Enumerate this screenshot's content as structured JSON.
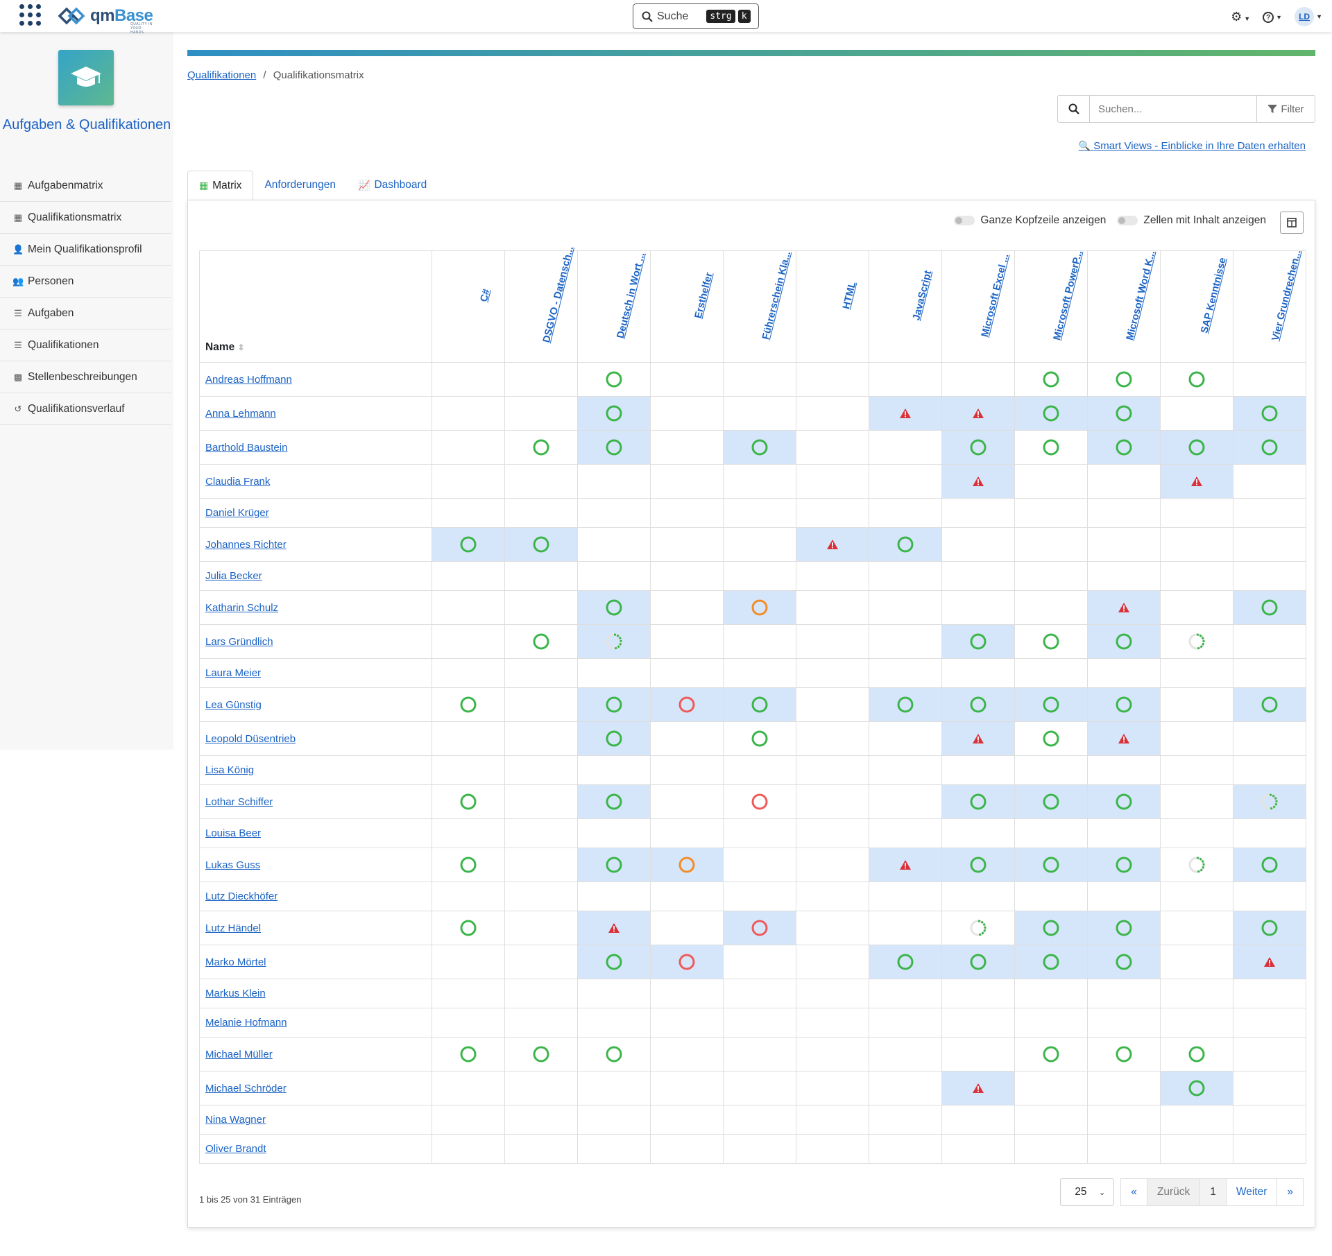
{
  "app": {
    "brand_prefix": "qm",
    "brand_suffix": "Base",
    "tagline": "QUALITY IN YOUR HANDS"
  },
  "topbar": {
    "search_label": "Suche",
    "kbd_1": "strg",
    "kbd_2": "k",
    "user_initials": "LD"
  },
  "sidebar": {
    "module_title": "Aufgaben & Qualifikationen",
    "items": [
      {
        "label": "Aufgabenmatrix",
        "icon": "matrix-icon"
      },
      {
        "label": "Qualifikationsmatrix",
        "icon": "matrix-icon"
      },
      {
        "label": "Mein Qualifikationsprofil",
        "icon": "user-icon"
      },
      {
        "label": "Personen",
        "icon": "users-icon"
      },
      {
        "label": "Aufgaben",
        "icon": "list-icon"
      },
      {
        "label": "Qualifikationen",
        "icon": "list-icon"
      },
      {
        "label": "Stellenbeschreibungen",
        "icon": "grid-icon"
      },
      {
        "label": "Qualifikationsverlauf",
        "icon": "history-icon"
      }
    ]
  },
  "breadcrumb": {
    "parent": "Qualifikationen",
    "current": "Qualifikationsmatrix"
  },
  "search": {
    "placeholder": "Suchen...",
    "filter_label": "Filter"
  },
  "smart_views_link": "Smart Views - Einblicke in Ihre Daten erhalten",
  "tabs": [
    {
      "label": "Matrix",
      "active": true
    },
    {
      "label": "Anforderungen",
      "active": false
    },
    {
      "label": "Dashboard",
      "active": false
    }
  ],
  "toggles": {
    "full_header": "Ganze Kopfzeile anzeigen",
    "cells_with_content": "Zellen mit Inhalt anzeigen"
  },
  "matrix": {
    "name_header": "Name",
    "columns": [
      "C#",
      "DSGVO - Datensch...",
      "Deutsch in Wort ...",
      "Ersthelfer",
      "Führerschein Kla...",
      "HTML",
      "JavaScript",
      "Microsoft Excel ...",
      "Microsoft PowerP...",
      "Microsoft Word K...",
      "SAP Kenntnisse",
      "Vier Grundrechen..."
    ],
    "legend": {
      "g": "fulfilled",
      "o": "partially-fulfilled",
      "r": "not-fulfilled",
      "w": "warning",
      "p": "in-progress"
    },
    "colors": {
      "green": "#3bb54a",
      "orange": "#f28c28",
      "red": "#ee5a5a",
      "warning": "#d9313a",
      "highlight": "#d6e6fa"
    },
    "rows": [
      {
        "name": "Andreas Hoffmann",
        "cells": [
          "",
          "",
          "g",
          "",
          "",
          "",
          "",
          "",
          "g",
          "g",
          "g",
          ""
        ],
        "hl": []
      },
      {
        "name": "Anna Lehmann",
        "cells": [
          "",
          "",
          "g",
          "",
          "",
          "",
          "w",
          "w",
          "g",
          "g",
          "",
          "g"
        ],
        "hl": [
          2,
          6,
          7,
          8,
          9,
          11
        ]
      },
      {
        "name": "Barthold Baustein",
        "cells": [
          "",
          "g",
          "g",
          "",
          "g",
          "",
          "",
          "g",
          "g",
          "g",
          "g",
          "g"
        ],
        "hl": [
          2,
          4,
          7,
          9,
          10,
          11
        ]
      },
      {
        "name": "Claudia Frank",
        "cells": [
          "",
          "",
          "",
          "",
          "",
          "",
          "",
          "w",
          "",
          "",
          "w",
          ""
        ],
        "hl": [
          7,
          10
        ]
      },
      {
        "name": "Daniel Krüger",
        "cells": [
          "",
          "",
          "",
          "",
          "",
          "",
          "",
          "",
          "",
          "",
          "",
          ""
        ],
        "hl": []
      },
      {
        "name": "Johannes Richter",
        "cells": [
          "g",
          "g",
          "",
          "",
          "",
          "w",
          "g",
          "",
          "",
          "",
          "",
          ""
        ],
        "hl": [
          0,
          1,
          5,
          6
        ]
      },
      {
        "name": "Julia Becker",
        "cells": [
          "",
          "",
          "",
          "",
          "",
          "",
          "",
          "",
          "",
          "",
          "",
          ""
        ],
        "hl": []
      },
      {
        "name": "Katharin Schulz",
        "cells": [
          "",
          "",
          "g",
          "",
          "o",
          "",
          "",
          "",
          "",
          "w",
          "",
          "g"
        ],
        "hl": [
          2,
          4,
          9,
          11
        ]
      },
      {
        "name": "Lars Gründlich",
        "cells": [
          "",
          "g",
          "p",
          "",
          "",
          "",
          "",
          "g",
          "g",
          "g",
          "p",
          ""
        ],
        "hl": [
          2,
          7,
          9
        ]
      },
      {
        "name": "Laura Meier",
        "cells": [
          "",
          "",
          "",
          "",
          "",
          "",
          "",
          "",
          "",
          "",
          "",
          ""
        ],
        "hl": []
      },
      {
        "name": "Lea Günstig",
        "cells": [
          "g",
          "",
          "g",
          "r",
          "g",
          "",
          "g",
          "g",
          "g",
          "g",
          "",
          "g"
        ],
        "hl": [
          2,
          3,
          4,
          6,
          7,
          8,
          9,
          11
        ]
      },
      {
        "name": "Leopold Düsentrieb",
        "cells": [
          "",
          "",
          "g",
          "",
          "g",
          "",
          "",
          "w",
          "g",
          "w",
          "",
          ""
        ],
        "hl": [
          2,
          7,
          9
        ]
      },
      {
        "name": "Lisa König",
        "cells": [
          "",
          "",
          "",
          "",
          "",
          "",
          "",
          "",
          "",
          "",
          "",
          ""
        ],
        "hl": []
      },
      {
        "name": "Lothar Schiffer",
        "cells": [
          "g",
          "",
          "g",
          "",
          "r",
          "",
          "",
          "g",
          "g",
          "g",
          "",
          "p"
        ],
        "hl": [
          2,
          7,
          8,
          9,
          11
        ]
      },
      {
        "name": "Louisa Beer",
        "cells": [
          "",
          "",
          "",
          "",
          "",
          "",
          "",
          "",
          "",
          "",
          "",
          ""
        ],
        "hl": []
      },
      {
        "name": "Lukas Guss",
        "cells": [
          "g",
          "",
          "g",
          "o",
          "",
          "",
          "w",
          "g",
          "g",
          "g",
          "p",
          "g"
        ],
        "hl": [
          2,
          3,
          6,
          7,
          8,
          9,
          11
        ]
      },
      {
        "name": "Lutz Dieckhöfer",
        "cells": [
          "",
          "",
          "",
          "",
          "",
          "",
          "",
          "",
          "",
          "",
          "",
          ""
        ],
        "hl": []
      },
      {
        "name": "Lutz Händel",
        "cells": [
          "g",
          "",
          "w",
          "",
          "r",
          "",
          "",
          "p",
          "g",
          "g",
          "",
          "g"
        ],
        "hl": [
          2,
          4,
          8,
          9,
          11
        ]
      },
      {
        "name": "Marko Mörtel",
        "cells": [
          "",
          "",
          "g",
          "r",
          "",
          "",
          "g",
          "g",
          "g",
          "g",
          "",
          "w"
        ],
        "hl": [
          2,
          3,
          6,
          7,
          8,
          9,
          11
        ]
      },
      {
        "name": "Markus Klein",
        "cells": [
          "",
          "",
          "",
          "",
          "",
          "",
          "",
          "",
          "",
          "",
          "",
          ""
        ],
        "hl": []
      },
      {
        "name": "Melanie Hofmann",
        "cells": [
          "",
          "",
          "",
          "",
          "",
          "",
          "",
          "",
          "",
          "",
          "",
          ""
        ],
        "hl": []
      },
      {
        "name": "Michael Müller",
        "cells": [
          "g",
          "g",
          "g",
          "",
          "",
          "",
          "",
          "",
          "g",
          "g",
          "g",
          ""
        ],
        "hl": []
      },
      {
        "name": "Michael Schröder",
        "cells": [
          "",
          "",
          "",
          "",
          "",
          "",
          "",
          "w",
          "",
          "",
          "g",
          ""
        ],
        "hl": [
          7,
          10
        ]
      },
      {
        "name": "Nina Wagner",
        "cells": [
          "",
          "",
          "",
          "",
          "",
          "",
          "",
          "",
          "",
          "",
          "",
          ""
        ],
        "hl": []
      },
      {
        "name": "Oliver Brandt",
        "cells": [
          "",
          "",
          "",
          "",
          "",
          "",
          "",
          "",
          "",
          "",
          "",
          ""
        ],
        "hl": []
      }
    ]
  },
  "footer": {
    "info": "1 bis 25 von 31 Einträgen",
    "page_size": "25",
    "prev_first": "«",
    "prev": "Zurück",
    "page": "1",
    "next": "Weiter",
    "next_last": "»"
  }
}
